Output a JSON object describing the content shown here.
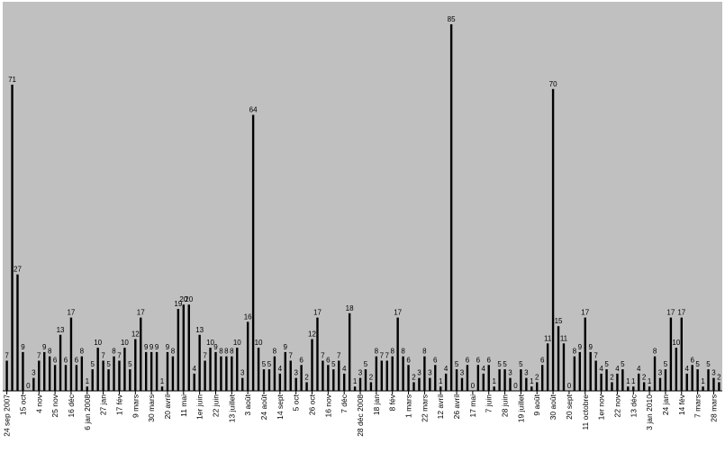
{
  "chart_data": {
    "type": "bar",
    "title": "",
    "xlabel": "",
    "ylabel": "",
    "ylim": [
      0,
      90
    ],
    "grid": false,
    "legend": "none",
    "colors": {
      "plot_background": "#c0c0c0",
      "bar": "#000000",
      "page_background": "#ffffff"
    },
    "values": [
      7,
      71,
      27,
      9,
      0,
      3,
      7,
      9,
      8,
      6,
      13,
      6,
      17,
      6,
      8,
      1,
      5,
      10,
      7,
      5,
      8,
      7,
      10,
      5,
      12,
      17,
      9,
      9,
      9,
      1,
      9,
      8,
      19,
      20,
      20,
      4,
      13,
      7,
      10,
      9,
      8,
      8,
      8,
      10,
      3,
      16,
      64,
      10,
      5,
      5,
      8,
      4,
      9,
      7,
      3,
      6,
      2,
      12,
      17,
      7,
      6,
      5,
      7,
      4,
      18,
      1,
      3,
      5,
      2,
      8,
      7,
      7,
      8,
      17,
      8,
      6,
      2,
      3,
      8,
      3,
      6,
      1,
      4,
      85,
      5,
      3,
      6,
      0,
      6,
      4,
      6,
      1,
      5,
      5,
      3,
      0,
      5,
      3,
      1,
      2,
      6,
      11,
      70,
      15,
      11,
      0,
      8,
      9,
      17,
      9,
      7,
      4,
      5,
      2,
      4,
      5,
      1,
      1,
      4,
      2,
      1,
      8,
      3,
      5,
      17,
      10,
      17,
      4,
      6,
      5,
      1,
      5,
      3,
      2
    ],
    "x_tick_labels": [
      {
        "index": 0,
        "label": "24 sep 2007"
      },
      {
        "index": 3,
        "label": "15 oct"
      },
      {
        "index": 6,
        "label": "4 nov"
      },
      {
        "index": 9,
        "label": "25 nov"
      },
      {
        "index": 12,
        "label": "16 déc"
      },
      {
        "index": 15,
        "label": "6 jan 2008"
      },
      {
        "index": 18,
        "label": "27 jan"
      },
      {
        "index": 21,
        "label": "17 fév"
      },
      {
        "index": 24,
        "label": "9 mars"
      },
      {
        "index": 27,
        "label": "30 mars"
      },
      {
        "index": 30,
        "label": "20 avril"
      },
      {
        "index": 33,
        "label": "11 mai"
      },
      {
        "index": 36,
        "label": "1er juin"
      },
      {
        "index": 39,
        "label": "22 juin"
      },
      {
        "index": 42,
        "label": "13 juillet"
      },
      {
        "index": 45,
        "label": "3 août"
      },
      {
        "index": 48,
        "label": "24 août"
      },
      {
        "index": 51,
        "label": "14 sept"
      },
      {
        "index": 54,
        "label": "5 oct"
      },
      {
        "index": 57,
        "label": "26 oct"
      },
      {
        "index": 60,
        "label": "16 nov"
      },
      {
        "index": 63,
        "label": "7 déc"
      },
      {
        "index": 66,
        "label": "28 déc 2008"
      },
      {
        "index": 69,
        "label": "18 jan"
      },
      {
        "index": 72,
        "label": "8 fév"
      },
      {
        "index": 75,
        "label": "1 mars"
      },
      {
        "index": 78,
        "label": "22 mars"
      },
      {
        "index": 81,
        "label": "12 avril"
      },
      {
        "index": 84,
        "label": "26 avril"
      },
      {
        "index": 87,
        "label": "17 mai"
      },
      {
        "index": 90,
        "label": "7 juin"
      },
      {
        "index": 93,
        "label": "28 juin"
      },
      {
        "index": 96,
        "label": "19 juillet"
      },
      {
        "index": 99,
        "label": "9 août"
      },
      {
        "index": 102,
        "label": "30 août"
      },
      {
        "index": 105,
        "label": "20 sept"
      },
      {
        "index": 108,
        "label": "11 octobre"
      },
      {
        "index": 111,
        "label": "1er nov"
      },
      {
        "index": 114,
        "label": "22 nov"
      },
      {
        "index": 117,
        "label": "13 déc"
      },
      {
        "index": 120,
        "label": "3 jan 2010"
      },
      {
        "index": 123,
        "label": "24 jan"
      },
      {
        "index": 126,
        "label": "14 fév"
      },
      {
        "index": 129,
        "label": "7 mars"
      },
      {
        "index": 132,
        "label": "28 mars"
      }
    ]
  }
}
